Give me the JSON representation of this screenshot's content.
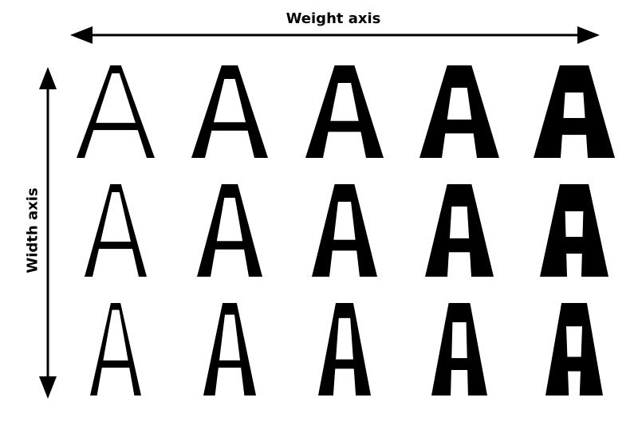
{
  "axes": {
    "weight_label": "Weight axis",
    "width_label": "Width axis"
  },
  "glyph": {
    "character": "A",
    "rows": 3,
    "columns": 5
  },
  "colors": {
    "background": "#ffffff",
    "ink": "#000000"
  }
}
